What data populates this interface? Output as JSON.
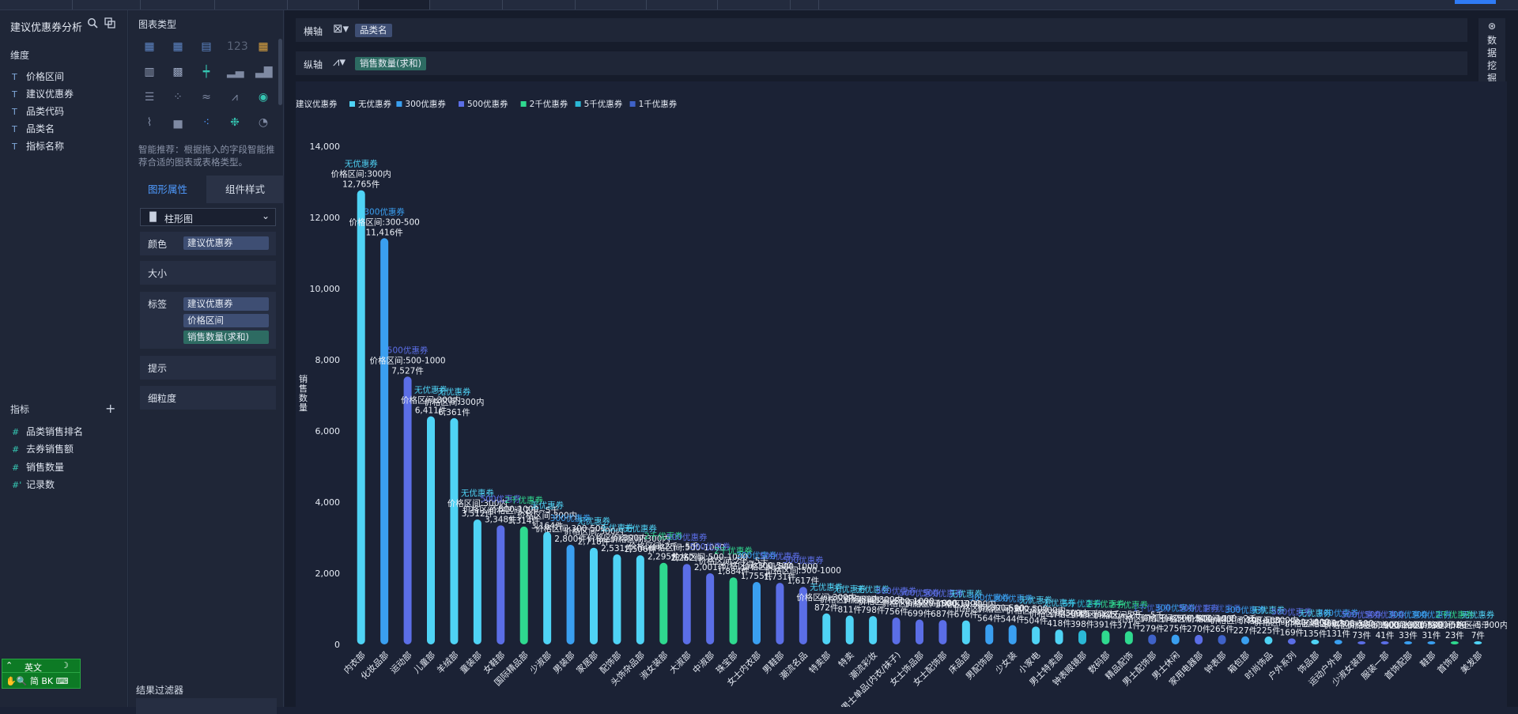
{
  "left_panel": {
    "dataset_title": "建议优惠券分析",
    "dimensions_label": "维度",
    "dimensions": [
      "价格区间",
      "建议优惠券",
      "品类代码",
      "品类名",
      "指标名称"
    ],
    "measures_label": "指标",
    "measures": [
      "品类销售排名",
      "去券销售额",
      "销售数量",
      "记录数"
    ]
  },
  "ime": {
    "mode_label": "英文",
    "row2": "✋🔍 简 BK ⌨"
  },
  "mid_panel": {
    "chart_types_label": "图表类型",
    "hint": "智能推荐：根据拖入的字段智能推荐合适的图表或表格类型。",
    "tab_graph_props": "图形属性",
    "tab_component_style": "组件样式",
    "chart_select": "柱形图",
    "color_label": "颜色",
    "color_field": "建议优惠券",
    "size_label": "大小",
    "label_label": "标签",
    "label_fields": [
      "建议优惠券",
      "价格区间",
      "销售数量(求和)"
    ],
    "tooltip_label": "提示",
    "granularity_label": "细粒度",
    "result_filter_label": "结果过滤器"
  },
  "main": {
    "x_axis_label": "横轴",
    "x_axis_field": "品类名",
    "y_axis_label": "纵轴",
    "y_axis_field": "销售数量(求和)",
    "side_button": "数据挖掘"
  },
  "colors": {
    "无优惠券": "#4fd3f5",
    "300优惠券": "#3a9ff0",
    "500优惠券": "#5b6ee6",
    "2千优惠券": "#2fd98f",
    "5千优惠券": "#2bb8d6",
    "1千优惠券": "#3f62c8"
  },
  "chart_data": {
    "type": "bar",
    "legend_title": "建议优惠券",
    "legend": [
      "无优惠券",
      "300优惠券",
      "500优惠券",
      "2千优惠券",
      "5千优惠券",
      "1千优惠券"
    ],
    "ylabel": "销售数量",
    "ylim": [
      0,
      14000
    ],
    "yticks": [
      "0",
      "2,000",
      "4,000",
      "6,000",
      "8,000",
      "10,000",
      "12,000",
      "14,000"
    ],
    "bars": [
      {
        "category": "内衣部",
        "coupon": "无优惠券",
        "price": "价格区间:300内",
        "value": 12765,
        "vlabel": "12,765件"
      },
      {
        "category": "化妆品部",
        "coupon": "300优惠券",
        "price": "价格区间:300-500",
        "value": 11416,
        "vlabel": "11,416件"
      },
      {
        "category": "运动部",
        "coupon": "500优惠券",
        "price": "价格区间:500-1000",
        "value": 7527,
        "vlabel": "7,527件"
      },
      {
        "category": "儿童部",
        "coupon": "无优惠券",
        "price": "价格区间:300内",
        "value": 6411,
        "vlabel": "6,411件"
      },
      {
        "category": "羊绒部",
        "coupon": "无优惠券",
        "price": "价格区间:300内",
        "value": 6361,
        "vlabel": "6,361件"
      },
      {
        "category": "童装部",
        "coupon": "无优惠券",
        "price": "价格区间:300内",
        "value": 3512,
        "vlabel": "3,512件"
      },
      {
        "category": "女鞋部",
        "coupon": "500优惠券",
        "price": "价格区间:500-1000",
        "value": 3348,
        "vlabel": "3,348件"
      },
      {
        "category": "国际精品部",
        "coupon": "2千优惠券",
        "price": "价格区间:2千~5千",
        "value": 3314,
        "vlabel": "3,314件"
      },
      {
        "category": "少淑部",
        "coupon": "无优惠券",
        "price": "价格区间:300内",
        "value": 3164,
        "vlabel": "3,164件"
      },
      {
        "category": "男装部",
        "coupon": "300优惠券",
        "price": "价格区间:300-500",
        "value": 2800,
        "vlabel": "2,800件"
      },
      {
        "category": "家居部",
        "coupon": "无优惠券",
        "price": "价格区间:300内",
        "value": 2718,
        "vlabel": "2,718件"
      },
      {
        "category": "配饰部",
        "coupon": "无优惠券",
        "price": "价格区间:300内",
        "value": 2531,
        "vlabel": "2,531件"
      },
      {
        "category": "头饰杂品部",
        "coupon": "无优惠券",
        "price": "价格区间:300内",
        "value": 2506,
        "vlabel": "2,506件"
      },
      {
        "category": "淑女装部",
        "coupon": "2千优惠券",
        "price": "价格区间:2千~5千",
        "value": 2295,
        "vlabel": "2,295件"
      },
      {
        "category": "大淑部",
        "coupon": "500优惠券",
        "price": "价格区间:500-1000",
        "value": 2262,
        "vlabel": "2,262件"
      },
      {
        "category": "中淑部",
        "coupon": "500优惠券",
        "price": "价格区间:500-1000",
        "value": 2001,
        "vlabel": "2,001件"
      },
      {
        "category": "珠宝部",
        "coupon": "2千优惠券",
        "price": "价格区间:2千~5千",
        "value": 1884,
        "vlabel": "1,884件"
      },
      {
        "category": "女士内衣部",
        "coupon": "300优惠券",
        "price": "价格区间:300-500",
        "value": 1755,
        "vlabel": "1,755件"
      },
      {
        "category": "男鞋部",
        "coupon": "500优惠券",
        "price": "价格区间:500-1000",
        "value": 1731,
        "vlabel": "1,731件"
      },
      {
        "category": "潮流名品",
        "coupon": "500优惠券",
        "price": "价格区间:500-1000",
        "value": 1617,
        "vlabel": "1,617件"
      },
      {
        "category": "特卖部",
        "coupon": "无优惠券",
        "price": "价格区间:300内",
        "value": 872,
        "vlabel": "872件"
      },
      {
        "category": "特卖",
        "coupon": "无优惠券",
        "price": "价格区间:300内",
        "value": 811,
        "vlabel": "811件"
      },
      {
        "category": "潮流彩妆",
        "coupon": "无优惠券",
        "price": "价格区间:300内",
        "value": 798,
        "vlabel": "798件"
      },
      {
        "category": "男士单品(内衣/袜子)",
        "coupon": "500优惠券",
        "price": "价格区间:500-1000",
        "value": 756,
        "vlabel": "756件"
      },
      {
        "category": "女士饰品部",
        "coupon": "500优惠券",
        "price": "价格区间:500-1000",
        "value": 699,
        "vlabel": "699件"
      },
      {
        "category": "女士配饰部",
        "coupon": "500优惠券",
        "price": "价格区间:500-1000",
        "value": 687,
        "vlabel": "687件"
      },
      {
        "category": "床品部",
        "coupon": "无优惠券",
        "price": "价格区间:300内",
        "value": 676,
        "vlabel": "676件"
      },
      {
        "category": "男配饰部",
        "coupon": "300优惠券",
        "price": "价格区间:300-500",
        "value": 564,
        "vlabel": "564件"
      },
      {
        "category": "少女装",
        "coupon": "300优惠券",
        "price": "价格区间:300-500",
        "value": 544,
        "vlabel": "544件"
      },
      {
        "category": "小家电",
        "coupon": "无优惠券",
        "price": "价格区间:300内",
        "value": 504,
        "vlabel": "504件"
      },
      {
        "category": "男士特卖部",
        "coupon": "无优惠券",
        "price": "价格区间:300内",
        "value": 418,
        "vlabel": "418件"
      },
      {
        "category": "钟表眼镜部",
        "coupon": "5千优惠券",
        "price": "价格区间:5千以上",
        "value": 398,
        "vlabel": "398件"
      },
      {
        "category": "数码部",
        "coupon": "2千优惠券",
        "price": "价格区间:2千~5千",
        "value": 391,
        "vlabel": "391件"
      },
      {
        "category": "精品配饰",
        "coupon": "2千优惠券",
        "price": "价格区间:2千~5千",
        "value": 371,
        "vlabel": "371件"
      },
      {
        "category": "男士配饰部",
        "coupon": "1千优惠券",
        "price": "价格区间:1千~2千",
        "value": 279,
        "vlabel": "279件"
      },
      {
        "category": "男士休闲",
        "coupon": "300优惠券",
        "price": "价格区间:300-500",
        "value": 275,
        "vlabel": "275件"
      },
      {
        "category": "家用电器部",
        "coupon": "500优惠券",
        "price": "价格区间:500-1000",
        "value": 270,
        "vlabel": "270件"
      },
      {
        "category": "钟表部",
        "coupon": "1千优惠券",
        "price": "价格区间:1千~2千",
        "value": 265,
        "vlabel": "265件"
      },
      {
        "category": "箱包部",
        "coupon": "300优惠券",
        "price": "价格区间:300-500",
        "value": 227,
        "vlabel": "227件"
      },
      {
        "category": "时尚饰品",
        "coupon": "无优惠券",
        "price": "价格区间:300内",
        "value": 225,
        "vlabel": "225件"
      },
      {
        "category": "户外系列",
        "coupon": "500优惠券",
        "price": "价格区间:500-1000",
        "value": 169,
        "vlabel": "169件"
      },
      {
        "category": "饰品部",
        "coupon": "无优惠券",
        "price": "价格区间:300内",
        "value": 135,
        "vlabel": "135件"
      },
      {
        "category": "运动户外部",
        "coupon": "300优惠券",
        "price": "价格区间:300-500",
        "value": 131,
        "vlabel": "131件"
      },
      {
        "category": "少淑女装部",
        "coupon": "500优惠券",
        "price": "价格区间:500-1000",
        "value": 73,
        "vlabel": "73件"
      },
      {
        "category": "服装一部",
        "coupon": "500优惠券",
        "price": "价格区间:500-1000",
        "value": 41,
        "vlabel": "41件"
      },
      {
        "category": "首饰配部",
        "coupon": "300优惠券",
        "price": "价格区间:300-500",
        "value": 33,
        "vlabel": "33件"
      },
      {
        "category": "鞋部",
        "coupon": "300优惠券",
        "price": "价格区间:300-500",
        "value": 31,
        "vlabel": "31件"
      },
      {
        "category": "首饰部",
        "coupon": "2千优惠券",
        "price": "价格区间:2千~5千",
        "value": 23,
        "vlabel": "23件"
      },
      {
        "category": "美发部",
        "coupon": "无优惠券",
        "price": "价格区间:300内",
        "value": 7,
        "vlabel": "7件"
      }
    ]
  }
}
